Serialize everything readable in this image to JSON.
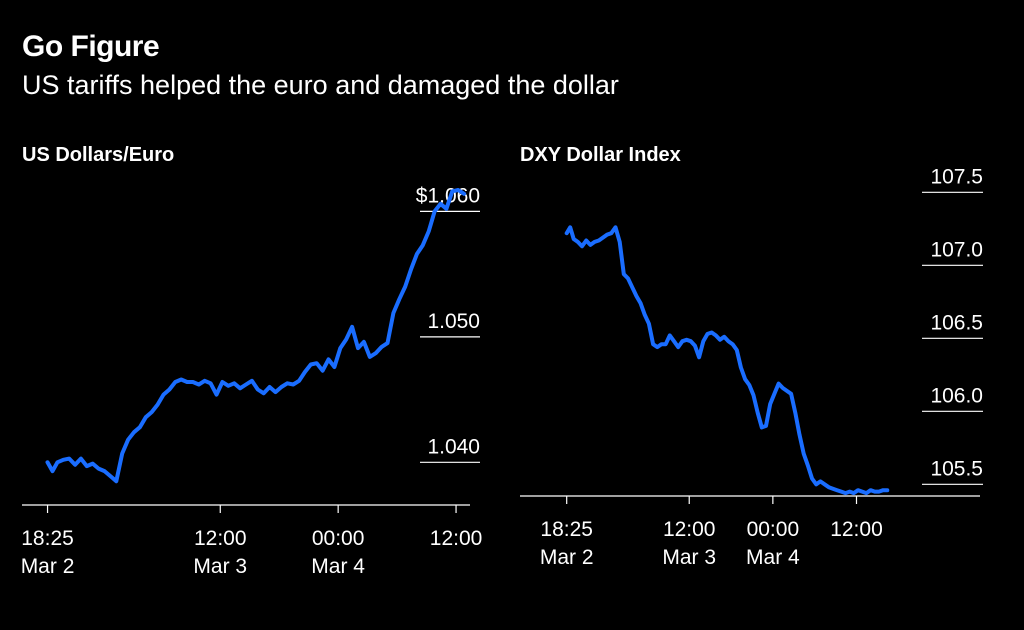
{
  "header": {
    "title": "Go Figure",
    "subtitle": "US tariffs helped the euro and damaged the dollar"
  },
  "colors": {
    "background": "#000000",
    "line": "#1a6dff",
    "text": "#ffffff"
  },
  "chart_data": [
    {
      "type": "line",
      "title": "US Dollars/Euro",
      "x_tick_labels": [
        {
          "time": "18:25",
          "date": "Mar 2"
        },
        {
          "time": "12:00",
          "date": "Mar 3"
        },
        {
          "time": "00:00",
          "date": "Mar 4"
        },
        {
          "time": "12:00",
          "date": ""
        }
      ],
      "x_tick_hours": [
        0,
        17.58,
        29.58,
        41.58
      ],
      "y_ticks": [
        1.04,
        1.05,
        1.06
      ],
      "y_tick_labels": [
        "1.040",
        "1.050",
        "$1.060"
      ],
      "ylim": [
        1.0366,
        1.0621
      ],
      "xlim": [
        -2.6,
        43.0
      ],
      "series": [
        {
          "x": [
            0,
            0.5,
            1,
            1.6,
            2.2,
            2.8,
            3.4,
            4.0,
            4.6,
            5.2,
            5.8,
            6.4,
            7.0,
            7.6,
            8.2,
            8.8,
            9.4,
            10.0,
            10.6,
            11.2,
            11.8,
            12.4,
            13.0,
            13.6,
            14.2,
            14.8,
            15.4,
            16.0,
            16.6,
            17.2,
            17.8,
            18.4,
            19.0,
            19.6,
            20.2,
            20.8,
            21.4,
            22.0,
            22.6,
            23.2,
            23.8,
            24.4,
            25.0,
            25.6,
            26.2,
            26.8,
            27.4,
            28.0,
            28.6,
            29.2,
            29.8,
            30.4,
            31.0,
            31.6,
            32.2,
            32.8,
            33.4,
            34.0,
            34.6,
            35.2,
            35.8,
            36.4,
            37.0,
            37.6,
            38.2,
            38.8,
            39.4,
            40.0,
            40.6,
            41.2,
            41.8,
            42.4
          ],
          "y": [
            1.04,
            1.0393,
            1.04,
            1.0402,
            1.0403,
            1.0398,
            1.0403,
            1.0397,
            1.0399,
            1.0395,
            1.0393,
            1.0389,
            1.0385,
            1.0407,
            1.0418,
            1.0424,
            1.0428,
            1.0436,
            1.044,
            1.0446,
            1.0454,
            1.0458,
            1.0464,
            1.0466,
            1.0464,
            1.0464,
            1.0462,
            1.0465,
            1.0463,
            1.0454,
            1.0464,
            1.0461,
            1.0463,
            1.0459,
            1.0462,
            1.0465,
            1.0458,
            1.0455,
            1.046,
            1.0456,
            1.046,
            1.0463,
            1.0462,
            1.0465,
            1.0472,
            1.0478,
            1.0479,
            1.0473,
            1.0482,
            1.0476,
            1.0491,
            1.0498,
            1.0508,
            1.0491,
            1.0496,
            1.0484,
            1.0487,
            1.0492,
            1.0495,
            1.0519,
            1.053,
            1.054,
            1.0554,
            1.0566,
            1.0573,
            1.0584,
            1.06,
            1.0606,
            1.0602,
            1.0616,
            1.0617,
            1.0614
          ]
        }
      ]
    },
    {
      "type": "line",
      "title": "DXY Dollar Index",
      "x_tick_labels": [
        {
          "time": "18:25",
          "date": "Mar 2"
        },
        {
          "time": "12:00",
          "date": "Mar 3"
        },
        {
          "time": "00:00",
          "date": "Mar 4"
        },
        {
          "time": "12:00",
          "date": ""
        }
      ],
      "x_tick_hours": [
        0,
        17.58,
        29.58,
        41.58
      ],
      "y_ticks": [
        105.5,
        106.0,
        106.5,
        107.0,
        107.5
      ],
      "y_tick_labels": [
        "105.5",
        "106.0",
        "106.5",
        "107.0",
        "107.5"
      ],
      "ylim": [
        105.42,
        107.55
      ],
      "xlim": [
        -6.7,
        59.3
      ],
      "series": [
        {
          "x": [
            0,
            0.5,
            1.0,
            1.6,
            2.2,
            2.8,
            3.4,
            4.0,
            4.6,
            5.2,
            5.8,
            6.4,
            7.0,
            7.6,
            8.2,
            8.8,
            9.4,
            10.0,
            10.6,
            11.2,
            11.8,
            12.4,
            13.0,
            13.6,
            14.2,
            14.8,
            15.4,
            16.0,
            16.6,
            17.2,
            17.8,
            18.4,
            19.0,
            19.6,
            20.2,
            20.8,
            21.4,
            22.0,
            22.6,
            23.2,
            23.8,
            24.4,
            25.0,
            25.6,
            26.2,
            26.8,
            27.4,
            28.0,
            28.6,
            29.2,
            29.8,
            30.4,
            31.0,
            31.6,
            32.2,
            32.8,
            33.4,
            34.0,
            34.6,
            35.2,
            35.8,
            36.4,
            37.0,
            37.6,
            38.2,
            38.8,
            39.4,
            40.0,
            40.6,
            41.2,
            41.8,
            42.4,
            43.0,
            43.6,
            44.2,
            44.8,
            45.4,
            46.0
          ],
          "y": [
            107.22,
            107.26,
            107.18,
            107.16,
            107.13,
            107.17,
            107.14,
            107.16,
            107.17,
            107.19,
            107.21,
            107.22,
            107.26,
            107.16,
            106.94,
            106.91,
            106.85,
            106.79,
            106.74,
            106.66,
            106.6,
            106.46,
            106.44,
            106.46,
            106.46,
            106.52,
            106.48,
            106.44,
            106.48,
            106.49,
            106.48,
            106.45,
            106.37,
            106.48,
            106.53,
            106.54,
            106.52,
            106.49,
            106.51,
            106.48,
            106.46,
            106.42,
            106.3,
            106.22,
            106.18,
            106.11,
            105.99,
            105.89,
            105.9,
            106.05,
            106.12,
            106.19,
            106.16,
            106.14,
            106.12,
            105.99,
            105.84,
            105.71,
            105.63,
            105.54,
            105.5,
            105.52,
            105.5,
            105.48,
            105.47,
            105.46,
            105.45,
            105.44,
            105.45,
            105.44,
            105.46,
            105.45,
            105.44,
            105.46,
            105.45,
            105.45,
            105.46,
            105.46
          ]
        }
      ]
    }
  ]
}
